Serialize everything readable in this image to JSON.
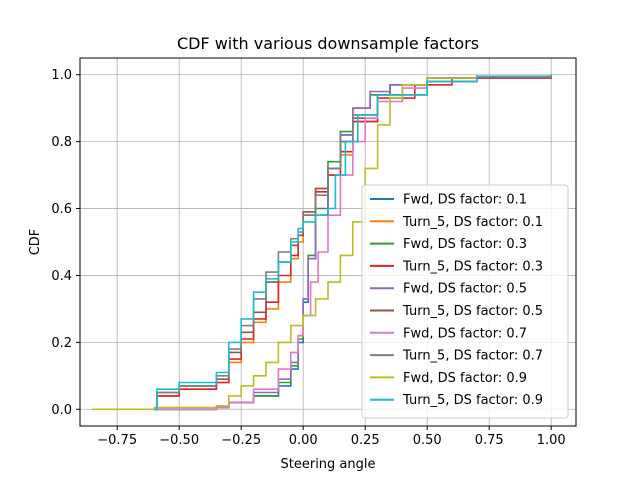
{
  "chart_data": {
    "type": "line",
    "title": "CDF with various downsample factors",
    "xlabel": "Steering angle",
    "ylabel": "CDF",
    "xlim": [
      -0.9,
      1.1
    ],
    "ylim": [
      -0.05,
      1.05
    ],
    "x_ticks": [
      -0.75,
      -0.5,
      -0.25,
      0.0,
      0.25,
      0.5,
      0.75,
      1.0
    ],
    "x_tick_labels": [
      "−0.75",
      "−0.50",
      "−0.25",
      "0.00",
      "0.25",
      "0.50",
      "0.75",
      "1.00"
    ],
    "y_ticks": [
      0.0,
      0.2,
      0.4,
      0.6,
      0.8,
      1.0
    ],
    "y_tick_labels": [
      "0.0",
      "0.2",
      "0.4",
      "0.6",
      "0.8",
      "1.0"
    ],
    "grid": true,
    "legend_position": "lower-right",
    "series": [
      {
        "name": "Fwd, DS factor: 0.1",
        "color": "#1f77b4",
        "points": [
          [
            -0.6,
            0.0
          ],
          [
            -0.35,
            0.005
          ],
          [
            -0.3,
            0.02
          ],
          [
            -0.2,
            0.04
          ],
          [
            -0.1,
            0.07
          ],
          [
            -0.05,
            0.12
          ],
          [
            -0.02,
            0.2
          ],
          [
            0.0,
            0.32
          ],
          [
            0.02,
            0.45
          ],
          [
            0.05,
            0.58
          ],
          [
            0.1,
            0.72
          ],
          [
            0.15,
            0.82
          ],
          [
            0.2,
            0.9
          ],
          [
            0.27,
            0.94
          ],
          [
            0.35,
            0.97
          ],
          [
            0.5,
            0.99
          ],
          [
            0.7,
            0.995
          ],
          [
            1.0,
            1.0
          ]
        ]
      },
      {
        "name": "Turn_5, DS factor: 0.1",
        "color": "#ff7f0e",
        "points": [
          [
            -0.6,
            0.0
          ],
          [
            -0.59,
            0.04
          ],
          [
            -0.5,
            0.06
          ],
          [
            -0.35,
            0.08
          ],
          [
            -0.3,
            0.14
          ],
          [
            -0.25,
            0.2
          ],
          [
            -0.2,
            0.26
          ],
          [
            -0.15,
            0.3
          ],
          [
            -0.1,
            0.38
          ],
          [
            -0.05,
            0.45
          ],
          [
            -0.02,
            0.5
          ],
          [
            0.0,
            0.58
          ],
          [
            0.05,
            0.66
          ],
          [
            0.1,
            0.7
          ],
          [
            0.15,
            0.76
          ],
          [
            0.2,
            0.86
          ],
          [
            0.3,
            0.94
          ],
          [
            0.5,
            0.98
          ],
          [
            0.7,
            0.995
          ],
          [
            1.0,
            1.0
          ]
        ]
      },
      {
        "name": "Fwd, DS factor: 0.3",
        "color": "#2ca02c",
        "points": [
          [
            -0.6,
            0.0
          ],
          [
            -0.35,
            0.005
          ],
          [
            -0.3,
            0.02
          ],
          [
            -0.2,
            0.04
          ],
          [
            -0.1,
            0.08
          ],
          [
            -0.05,
            0.13
          ],
          [
            -0.02,
            0.21
          ],
          [
            0.0,
            0.33
          ],
          [
            0.02,
            0.46
          ],
          [
            0.05,
            0.6
          ],
          [
            0.1,
            0.74
          ],
          [
            0.15,
            0.83
          ],
          [
            0.2,
            0.9
          ],
          [
            0.27,
            0.94
          ],
          [
            0.35,
            0.97
          ],
          [
            0.5,
            0.99
          ],
          [
            0.7,
            0.995
          ],
          [
            1.0,
            1.0
          ]
        ]
      },
      {
        "name": "Turn_5, DS factor: 0.3",
        "color": "#d62728",
        "points": [
          [
            -0.6,
            0.0
          ],
          [
            -0.59,
            0.04
          ],
          [
            -0.5,
            0.06
          ],
          [
            -0.35,
            0.08
          ],
          [
            -0.3,
            0.15
          ],
          [
            -0.25,
            0.21
          ],
          [
            -0.2,
            0.27
          ],
          [
            -0.15,
            0.32
          ],
          [
            -0.1,
            0.4
          ],
          [
            -0.05,
            0.46
          ],
          [
            -0.02,
            0.52
          ],
          [
            0.0,
            0.58
          ],
          [
            0.05,
            0.65
          ],
          [
            0.1,
            0.7
          ],
          [
            0.15,
            0.77
          ],
          [
            0.2,
            0.86
          ],
          [
            0.3,
            0.93
          ],
          [
            0.45,
            0.97
          ],
          [
            0.6,
            0.99
          ],
          [
            1.0,
            1.0
          ]
        ]
      },
      {
        "name": "Fwd, DS factor: 0.5",
        "color": "#9467bd",
        "points": [
          [
            -0.6,
            0.0
          ],
          [
            -0.35,
            0.005
          ],
          [
            -0.3,
            0.02
          ],
          [
            -0.2,
            0.05
          ],
          [
            -0.1,
            0.09
          ],
          [
            -0.05,
            0.14
          ],
          [
            -0.02,
            0.22
          ],
          [
            0.0,
            0.33
          ],
          [
            0.02,
            0.45
          ],
          [
            0.05,
            0.58
          ],
          [
            0.1,
            0.72
          ],
          [
            0.15,
            0.82
          ],
          [
            0.2,
            0.9
          ],
          [
            0.27,
            0.95
          ],
          [
            0.35,
            0.97
          ],
          [
            0.5,
            0.99
          ],
          [
            0.7,
            0.995
          ],
          [
            1.0,
            1.0
          ]
        ]
      },
      {
        "name": "Turn_5, DS factor: 0.5",
        "color": "#8c564b",
        "points": [
          [
            -0.6,
            0.0
          ],
          [
            -0.59,
            0.05
          ],
          [
            -0.5,
            0.07
          ],
          [
            -0.35,
            0.09
          ],
          [
            -0.3,
            0.17
          ],
          [
            -0.25,
            0.23
          ],
          [
            -0.2,
            0.29
          ],
          [
            -0.15,
            0.38
          ],
          [
            -0.1,
            0.44
          ],
          [
            -0.05,
            0.49
          ],
          [
            -0.02,
            0.52
          ],
          [
            0.0,
            0.59
          ],
          [
            0.05,
            0.66
          ],
          [
            0.1,
            0.72
          ],
          [
            0.15,
            0.8
          ],
          [
            0.2,
            0.87
          ],
          [
            0.3,
            0.94
          ],
          [
            0.5,
            0.98
          ],
          [
            0.7,
            0.995
          ],
          [
            1.0,
            1.0
          ]
        ]
      },
      {
        "name": "Fwd, DS factor: 0.7",
        "color": "#e377c2",
        "points": [
          [
            -0.6,
            0.0
          ],
          [
            -0.35,
            0.005
          ],
          [
            -0.3,
            0.02
          ],
          [
            -0.2,
            0.06
          ],
          [
            -0.1,
            0.12
          ],
          [
            -0.05,
            0.17
          ],
          [
            -0.02,
            0.22
          ],
          [
            0.0,
            0.28
          ],
          [
            0.03,
            0.38
          ],
          [
            0.06,
            0.47
          ],
          [
            0.1,
            0.58
          ],
          [
            0.15,
            0.7
          ],
          [
            0.2,
            0.8
          ],
          [
            0.25,
            0.87
          ],
          [
            0.3,
            0.92
          ],
          [
            0.4,
            0.96
          ],
          [
            0.5,
            0.98
          ],
          [
            0.7,
            0.995
          ],
          [
            1.0,
            1.0
          ]
        ]
      },
      {
        "name": "Turn_5, DS factor: 0.7",
        "color": "#7f7f7f",
        "points": [
          [
            -0.6,
            0.0
          ],
          [
            -0.59,
            0.05
          ],
          [
            -0.5,
            0.07
          ],
          [
            -0.35,
            0.1
          ],
          [
            -0.3,
            0.18
          ],
          [
            -0.25,
            0.25
          ],
          [
            -0.2,
            0.33
          ],
          [
            -0.15,
            0.41
          ],
          [
            -0.1,
            0.47
          ],
          [
            -0.05,
            0.51
          ],
          [
            -0.02,
            0.53
          ],
          [
            0.0,
            0.58
          ],
          [
            0.05,
            0.64
          ],
          [
            0.1,
            0.72
          ],
          [
            0.15,
            0.8
          ],
          [
            0.2,
            0.88
          ],
          [
            0.3,
            0.94
          ],
          [
            0.5,
            0.98
          ],
          [
            0.7,
            0.995
          ],
          [
            1.0,
            1.0
          ]
        ]
      },
      {
        "name": "Fwd, DS factor: 0.9",
        "color": "#bcbd22",
        "points": [
          [
            -0.85,
            0.0
          ],
          [
            -0.6,
            0.005
          ],
          [
            -0.4,
            0.005
          ],
          [
            -0.35,
            0.01
          ],
          [
            -0.3,
            0.04
          ],
          [
            -0.25,
            0.07
          ],
          [
            -0.2,
            0.1
          ],
          [
            -0.15,
            0.14
          ],
          [
            -0.1,
            0.2
          ],
          [
            -0.05,
            0.25
          ],
          [
            0.0,
            0.28
          ],
          [
            0.05,
            0.33
          ],
          [
            0.1,
            0.38
          ],
          [
            0.15,
            0.46
          ],
          [
            0.2,
            0.56
          ],
          [
            0.25,
            0.72
          ],
          [
            0.3,
            0.85
          ],
          [
            0.35,
            0.93
          ],
          [
            0.4,
            0.97
          ],
          [
            0.5,
            0.99
          ],
          [
            0.7,
            1.0
          ]
        ]
      },
      {
        "name": "Turn_5, DS factor: 0.9",
        "color": "#17becf",
        "points": [
          [
            -0.6,
            0.0
          ],
          [
            -0.59,
            0.06
          ],
          [
            -0.5,
            0.08
          ],
          [
            -0.35,
            0.11
          ],
          [
            -0.3,
            0.2
          ],
          [
            -0.25,
            0.27
          ],
          [
            -0.2,
            0.35
          ],
          [
            -0.15,
            0.39
          ],
          [
            -0.1,
            0.44
          ],
          [
            -0.05,
            0.5
          ],
          [
            -0.02,
            0.54
          ],
          [
            0.0,
            0.56
          ],
          [
            0.05,
            0.58
          ],
          [
            0.1,
            0.6
          ],
          [
            0.13,
            0.7
          ],
          [
            0.17,
            0.8
          ],
          [
            0.22,
            0.88
          ],
          [
            0.3,
            0.94
          ],
          [
            0.5,
            0.98
          ],
          [
            0.7,
            0.995
          ],
          [
            1.0,
            1.0
          ]
        ]
      }
    ]
  }
}
